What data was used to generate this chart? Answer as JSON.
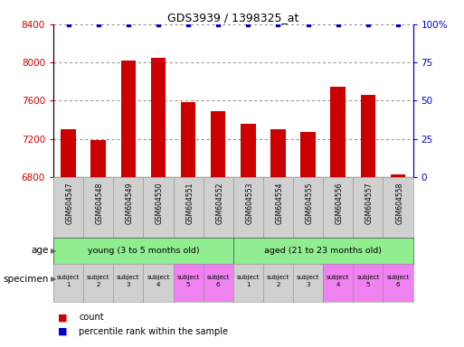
{
  "title": "GDS3939 / 1398325_at",
  "categories": [
    "GSM604547",
    "GSM604548",
    "GSM604549",
    "GSM604550",
    "GSM604551",
    "GSM604552",
    "GSM604553",
    "GSM604554",
    "GSM604555",
    "GSM604556",
    "GSM604557",
    "GSM604558"
  ],
  "counts": [
    7300,
    7190,
    8020,
    8050,
    7580,
    7490,
    7360,
    7300,
    7270,
    7750,
    7660,
    6830
  ],
  "percentile_ranks": [
    100,
    100,
    100,
    100,
    100,
    100,
    100,
    100,
    100,
    100,
    100,
    100
  ],
  "bar_color": "#cc0000",
  "dot_color": "#0000cc",
  "ylim_left": [
    6800,
    8400
  ],
  "ylim_right": [
    0,
    100
  ],
  "yticks_left": [
    6800,
    7200,
    7600,
    8000,
    8400
  ],
  "yticks_right": [
    0,
    25,
    50,
    75,
    100
  ],
  "age_groups": [
    {
      "label": "young (3 to 5 months old)",
      "start": 0,
      "end": 6,
      "color": "#90ee90"
    },
    {
      "label": "aged (21 to 23 months old)",
      "start": 6,
      "end": 12,
      "color": "#90ee90"
    }
  ],
  "specimen_colors": [
    "#d0d0d0",
    "#d0d0d0",
    "#d0d0d0",
    "#d0d0d0",
    "#ee82ee",
    "#ee82ee",
    "#d0d0d0",
    "#d0d0d0",
    "#d0d0d0",
    "#ee82ee",
    "#ee82ee",
    "#ee82ee"
  ],
  "specimen_labels": [
    "subject\n1",
    "subject\n2",
    "subject\n3",
    "subject\n4",
    "subject\n5",
    "subject\n6",
    "subject\n1",
    "subject\n2",
    "subject\n3",
    "subject\n4",
    "subject\n5",
    "subject\n6"
  ],
  "age_label": "age",
  "specimen_label": "specimen",
  "legend_count_label": "count",
  "legend_percentile_label": "percentile rank within the sample",
  "grid_color": "#555555",
  "tick_color_left": "#cc0000",
  "tick_color_right": "#0000cc",
  "bar_width": 0.5,
  "xticklabel_bg": "#d0d0d0"
}
